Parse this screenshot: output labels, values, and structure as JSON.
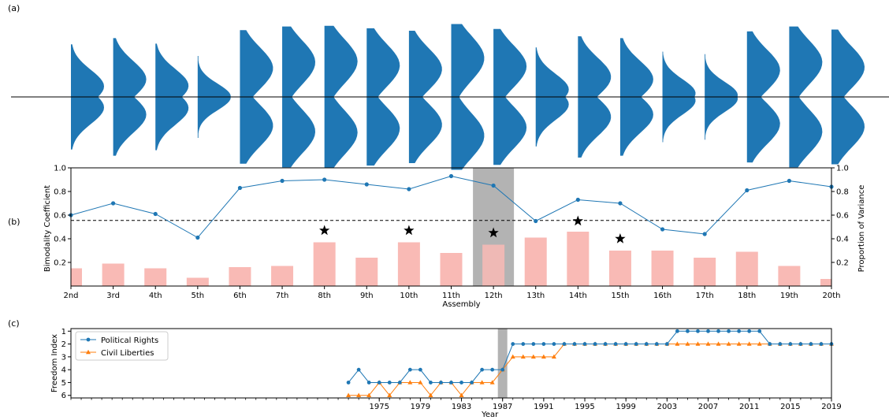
{
  "panel_labels": [
    "(a)",
    "(b)",
    "(c)"
  ],
  "colors": {
    "violin": "#1f77b4",
    "bimodality_line": "#1f77b4",
    "variance_bar": "#f9bab5",
    "highlight": "#b3b3b3",
    "political_rights": "#1f77b4",
    "civil_liberties": "#ff7f0e"
  },
  "chart_data": [
    {
      "panel": "(a)",
      "type": "violin",
      "categories": [
        "2nd",
        "3rd",
        "4th",
        "5th",
        "6th",
        "7th",
        "8th",
        "9th",
        "10th",
        "11th",
        "12th",
        "13th",
        "14th",
        "15th",
        "16th",
        "17th",
        "18th",
        "19th",
        "20th"
      ]
    },
    {
      "panel": "(b)",
      "type": "bar+line",
      "categories": [
        "2nd",
        "3rd",
        "4th",
        "5th",
        "6th",
        "7th",
        "8th",
        "9th",
        "10th",
        "11th",
        "12th",
        "13th",
        "14th",
        "15th",
        "16th",
        "17th",
        "18th",
        "19th",
        "20th"
      ],
      "xlabel": "Assembly",
      "ylabel_left": "Bimodality Coefficient",
      "ylabel_right": "Proportion of Variance",
      "ylim": [
        0,
        1.0
      ],
      "yticks": [
        "0.2",
        "0.4",
        "0.6",
        "0.8",
        "1.0"
      ],
      "threshold": 0.555,
      "highlight_category": "12th",
      "series": [
        {
          "kind": "line",
          "values": [
            0.6,
            0.7,
            0.61,
            0.41,
            0.83,
            0.89,
            0.9,
            0.86,
            0.82,
            0.93,
            0.85,
            0.55,
            0.73,
            0.7,
            0.48,
            0.44,
            0.81,
            0.89,
            0.84
          ]
        },
        {
          "kind": "bar",
          "values": [
            0.15,
            0.19,
            0.15,
            0.07,
            0.16,
            0.17,
            0.37,
            0.24,
            0.37,
            0.28,
            0.35,
            0.41,
            0.46,
            0.3,
            0.3,
            0.24,
            0.29,
            0.17,
            0.06
          ]
        }
      ],
      "stars": [
        {
          "category": "8th",
          "y": 0.47
        },
        {
          "category": "10th",
          "y": 0.47
        },
        {
          "category": "12th",
          "y": 0.45
        },
        {
          "category": "14th",
          "y": 0.55
        },
        {
          "category": "15th",
          "y": 0.4
        }
      ]
    },
    {
      "panel": "(c)",
      "type": "line",
      "xlabel": "Year",
      "ylabel": "Freedom Index",
      "xlim": [
        1945,
        2019
      ],
      "ylim": [
        6.2,
        0.8
      ],
      "xticks": [
        1975,
        1979,
        1983,
        1987,
        1991,
        1995,
        1999,
        2003,
        2007,
        2011,
        2015,
        2019
      ],
      "yticks": [
        1,
        2,
        3,
        4,
        5,
        6
      ],
      "highlight_year": 1987,
      "legend_position": "upper-left",
      "series": [
        {
          "name": "Political Rights",
          "marker": "circle",
          "x": [
            1972,
            1973,
            1974,
            1975,
            1976,
            1977,
            1978,
            1979,
            1980,
            1981,
            1982,
            1983,
            1984,
            1985,
            1986,
            1987,
            1988,
            1989,
            1990,
            1991,
            1992,
            1993,
            1994,
            1995,
            1996,
            1997,
            1998,
            1999,
            2000,
            2001,
            2002,
            2003,
            2004,
            2005,
            2006,
            2007,
            2008,
            2009,
            2010,
            2011,
            2012,
            2013,
            2014,
            2015,
            2016,
            2017,
            2018,
            2019
          ],
          "y": [
            5,
            4,
            5,
            5,
            5,
            5,
            4,
            4,
            5,
            5,
            5,
            5,
            5,
            4,
            4,
            4,
            2,
            2,
            2,
            2,
            2,
            2,
            2,
            2,
            2,
            2,
            2,
            2,
            2,
            2,
            2,
            2,
            1,
            1,
            1,
            1,
            1,
            1,
            1,
            1,
            1,
            2,
            2,
            2,
            2,
            2,
            2,
            2
          ]
        },
        {
          "name": "Civil Liberties",
          "marker": "triangle",
          "x": [
            1972,
            1973,
            1974,
            1975,
            1976,
            1977,
            1978,
            1979,
            1980,
            1981,
            1982,
            1983,
            1984,
            1985,
            1986,
            1987,
            1988,
            1989,
            1990,
            1991,
            1992,
            1993,
            1994,
            1995,
            1996,
            1997,
            1998,
            1999,
            2000,
            2001,
            2002,
            2003,
            2004,
            2005,
            2006,
            2007,
            2008,
            2009,
            2010,
            2011,
            2012,
            2013,
            2014,
            2015,
            2016,
            2017,
            2018,
            2019
          ],
          "y": [
            6,
            6,
            6,
            5,
            6,
            5,
            5,
            5,
            6,
            5,
            5,
            6,
            5,
            5,
            5,
            4,
            3,
            3,
            3,
            3,
            3,
            2,
            2,
            2,
            2,
            2,
            2,
            2,
            2,
            2,
            2,
            2,
            2,
            2,
            2,
            2,
            2,
            2,
            2,
            2,
            2,
            2,
            2,
            2,
            2,
            2,
            2,
            2
          ]
        }
      ]
    }
  ]
}
